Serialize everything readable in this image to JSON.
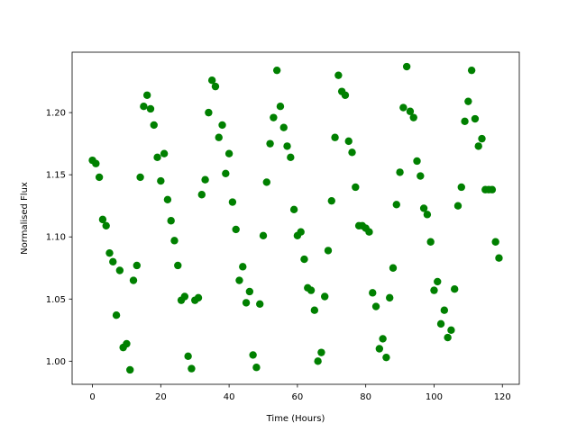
{
  "chart_data": {
    "type": "scatter",
    "x_label": "Time (Hours)",
    "y_label": "Normalised Flux",
    "color": "#008000",
    "grid": false,
    "x": [
      0,
      1,
      2,
      3,
      4,
      5,
      6,
      7,
      8,
      9,
      10,
      11,
      12,
      13,
      14,
      15,
      16,
      17,
      18,
      19,
      20,
      21,
      22,
      23,
      24,
      25,
      26,
      27,
      28,
      29,
      30,
      31,
      32,
      33,
      34,
      35,
      36,
      37,
      38,
      39,
      40,
      41,
      42,
      43,
      44,
      45,
      46,
      47,
      48,
      49,
      50,
      51,
      52,
      53,
      54,
      55,
      56,
      57,
      58,
      59,
      60,
      61,
      62,
      63,
      64,
      65,
      66,
      67,
      68,
      69,
      70,
      71,
      72,
      73,
      74,
      75,
      76,
      77,
      78,
      79,
      80,
      81,
      82,
      83,
      84,
      85,
      86,
      87,
      88,
      89,
      90,
      91,
      92,
      93,
      94,
      95,
      96,
      97,
      98,
      99,
      100,
      101,
      102,
      103,
      104,
      105,
      106,
      107,
      108,
      109,
      110,
      111,
      112,
      113,
      114,
      115,
      116,
      117,
      118,
      119
    ],
    "values": [
      1.1616,
      1.159,
      1.148,
      1.114,
      1.109,
      1.087,
      1.08,
      1.037,
      1.073,
      1.011,
      1.014,
      0.993,
      1.065,
      1.077,
      1.148,
      1.205,
      1.214,
      1.203,
      1.19,
      1.164,
      1.145,
      1.167,
      1.13,
      1.113,
      1.097,
      1.077,
      1.049,
      1.052,
      1.004,
      0.994,
      1.049,
      1.051,
      1.134,
      1.146,
      1.2,
      1.226,
      1.221,
      1.18,
      1.19,
      1.151,
      1.167,
      1.128,
      1.106,
      1.065,
      1.076,
      1.047,
      1.056,
      1.005,
      0.995,
      1.046,
      1.101,
      1.144,
      1.175,
      1.196,
      1.234,
      1.205,
      1.188,
      1.173,
      1.164,
      1.122,
      1.101,
      1.104,
      1.082,
      1.059,
      1.057,
      1.041,
      1.0,
      1.007,
      1.052,
      1.089,
      1.129,
      1.18,
      1.23,
      1.217,
      1.214,
      1.177,
      1.168,
      1.14,
      1.109,
      1.109,
      1.107,
      1.104,
      1.055,
      1.044,
      1.01,
      1.018,
      1.003,
      1.051,
      1.075,
      1.126,
      1.152,
      1.204,
      1.237,
      1.201,
      1.196,
      1.161,
      1.149,
      1.123,
      1.118,
      1.096,
      1.057,
      1.064,
      1.03,
      1.041,
      1.019,
      1.025,
      1.058,
      1.125,
      1.14,
      1.193,
      1.209,
      1.234,
      1.195,
      1.173,
      1.179,
      1.138,
      1.138,
      1.138,
      1.096,
      1.083
    ],
    "xlim": [
      -5.95,
      124.95
    ],
    "xticks": [
      0,
      20,
      40,
      60,
      80,
      100,
      120
    ],
    "ylim": [
      0.9814,
      1.2486
    ],
    "yticks": [
      {
        "value": 1.0,
        "label": "1.00"
      },
      {
        "value": 1.05,
        "label": "1.05"
      },
      {
        "value": 1.1,
        "label": "1.10"
      },
      {
        "value": 1.15,
        "label": "1.15"
      },
      {
        "value": 1.2,
        "label": "1.20"
      }
    ]
  }
}
